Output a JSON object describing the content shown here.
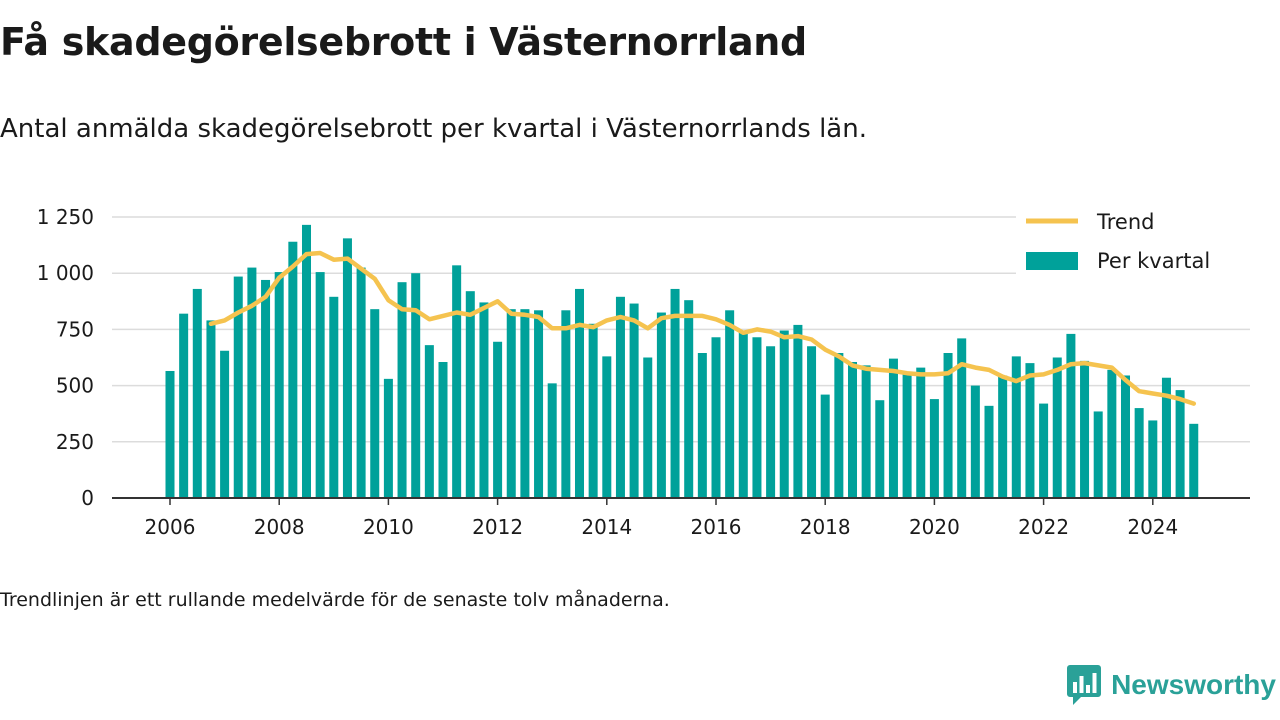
{
  "title": "Få skadegörelsebrott i Västernorrland",
  "subtitle": "Antal anmälda skadegörelsebrott per kvartal i Västernorrlands län.",
  "note": "Trendlinjen är ett rullande medelvärde för de senaste tolv månaderna.",
  "brand": {
    "name": "Newsworthy",
    "icon": "newsworthy-logo-icon"
  },
  "colors": {
    "bars": "#00a19a",
    "trend": "#f5c34f",
    "grid": "#dcdcdc",
    "axis": "#333333",
    "brand": "#2aa198"
  },
  "chart_data": {
    "type": "bar",
    "title": "Få skadegörelsebrott i Västernorrland",
    "xlabel": "",
    "ylabel": "",
    "x_start_year": 2006,
    "quarters_per_year": 4,
    "xlim": [
      2006,
      2026.8
    ],
    "ylim": [
      0,
      1250
    ],
    "y_ticks": [
      0,
      250,
      500,
      750,
      1000,
      1250
    ],
    "y_tick_labels": [
      "0",
      "250",
      "500",
      "750",
      "1 000",
      "1 250"
    ],
    "x_ticks": [
      2006,
      2008,
      2010,
      2012,
      2014,
      2016,
      2018,
      2020,
      2022,
      2024
    ],
    "x_tick_labels": [
      "2006",
      "2008",
      "2010",
      "2012",
      "2014",
      "2016",
      "2018",
      "2020",
      "2022",
      "2024"
    ],
    "grid": true,
    "legend_position": "top-right",
    "series": [
      {
        "name": "Per kvartal",
        "type": "bar",
        "values": [
          565,
          820,
          930,
          790,
          655,
          985,
          1025,
          970,
          1005,
          1140,
          1215,
          1005,
          895,
          1155,
          1025,
          840,
          530,
          960,
          1000,
          680,
          605,
          1035,
          920,
          870,
          695,
          840,
          840,
          835,
          510,
          835,
          930,
          775,
          630,
          895,
          865,
          625,
          825,
          930,
          880,
          645,
          715,
          835,
          740,
          715,
          675,
          745,
          770,
          675,
          460,
          645,
          605,
          590,
          435,
          620,
          550,
          580,
          440,
          645,
          710,
          500,
          410,
          545,
          630,
          600,
          420,
          625,
          730,
          610,
          385,
          570,
          545,
          400,
          345,
          535,
          480,
          330
        ]
      },
      {
        "name": "Trend",
        "type": "line",
        "start_quarter_index": 3,
        "values": [
          775,
          790,
          825,
          855,
          895,
          980,
          1030,
          1085,
          1090,
          1060,
          1065,
          1020,
          975,
          880,
          840,
          835,
          795,
          810,
          825,
          815,
          845,
          875,
          820,
          815,
          805,
          755,
          755,
          770,
          760,
          790,
          805,
          790,
          755,
          800,
          810,
          810,
          810,
          795,
          770,
          735,
          750,
          740,
          715,
          720,
          705,
          660,
          630,
          590,
          575,
          570,
          565,
          555,
          550,
          550,
          555,
          595,
          580,
          570,
          540,
          520,
          545,
          550,
          570,
          595,
          600,
          590,
          580,
          525,
          475,
          465,
          455,
          440,
          420
        ]
      }
    ]
  }
}
